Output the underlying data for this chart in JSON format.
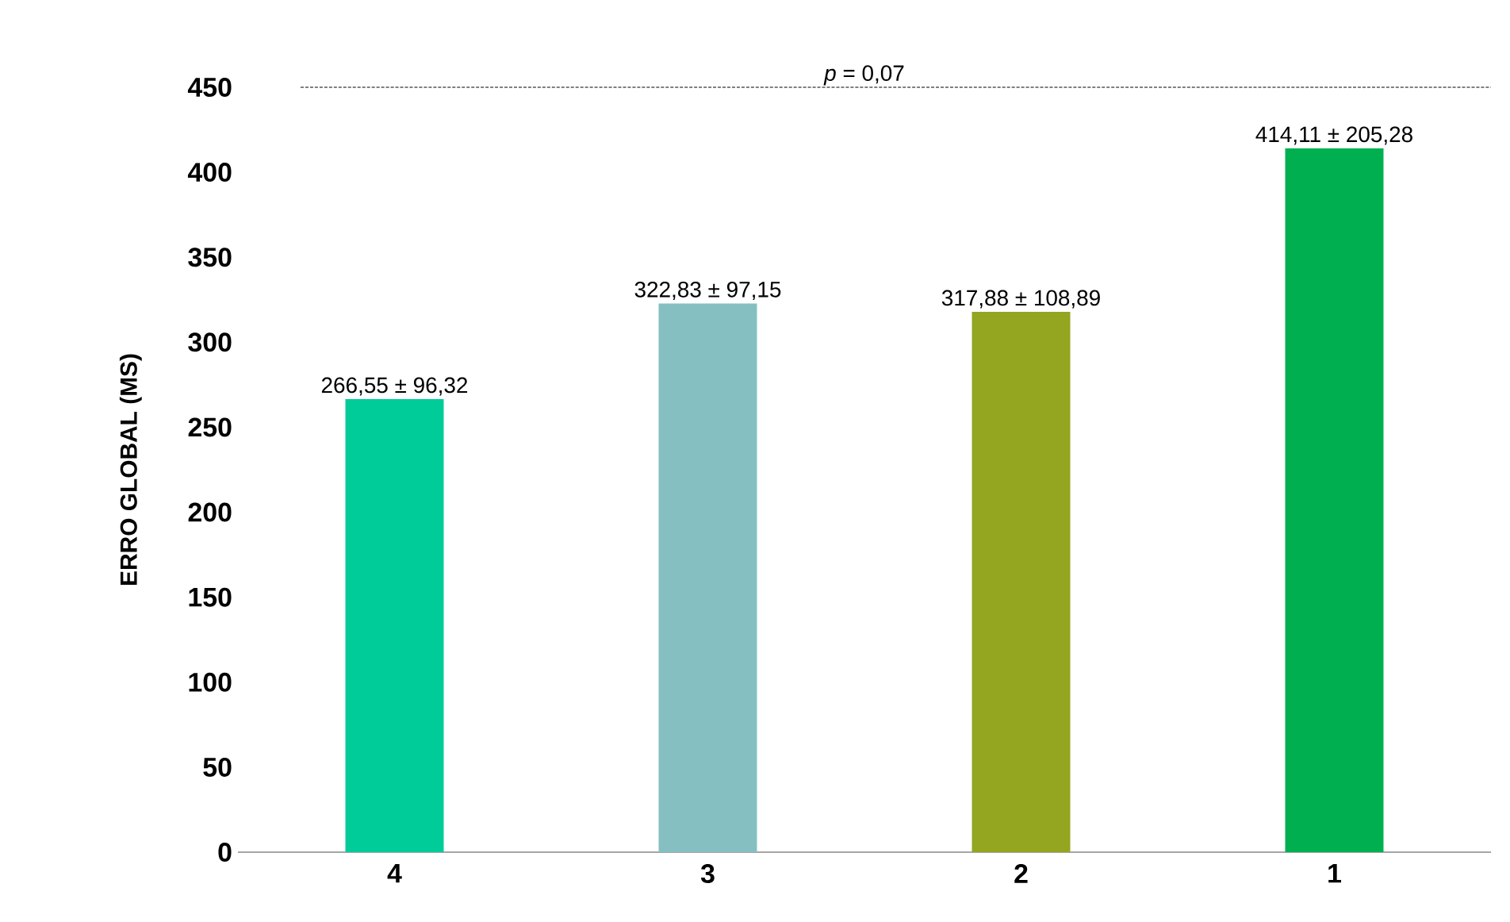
{
  "chart_data": {
    "type": "bar",
    "ylabel": "ERRO GLOBAL (MS)",
    "categories": [
      "4",
      "3",
      "2",
      "1"
    ],
    "values": [
      266.55,
      322.83,
      317.88,
      414.11
    ],
    "colors": [
      "#00cc99",
      "#86bfc2",
      "#94a520",
      "#00b050"
    ],
    "value_labels": [
      "266,55 ± 96,32",
      "322,83 ± 97,15",
      "317,88 ± 108,89",
      "414,11 ± 205,28"
    ],
    "ylim": [
      0,
      450
    ],
    "yticks": [
      0,
      50,
      100,
      150,
      200,
      250,
      300,
      350,
      400,
      450
    ],
    "ref_lines": [
      {
        "axis": "y",
        "value": 450,
        "color": "#000000",
        "line_style": "dashed"
      }
    ],
    "annotations": [
      "*p* = 0,07"
    ],
    "grid": false
  }
}
